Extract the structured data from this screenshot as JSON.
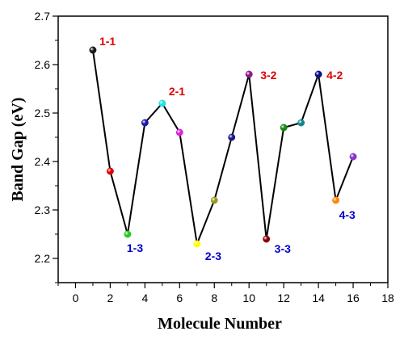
{
  "chart_data": {
    "type": "line",
    "xlabel": "Molecule Number",
    "ylabel": "Band Gap (eV)",
    "xlim": [
      -1,
      18
    ],
    "ylim": [
      2.15,
      2.7
    ],
    "xticks": [
      "0",
      "2",
      "4",
      "6",
      "8",
      "10",
      "12",
      "14",
      "16",
      "18"
    ],
    "yticks": [
      "2.2",
      "2.3",
      "2.4",
      "2.5",
      "2.6",
      "2.7"
    ],
    "grid": false,
    "series": [
      {
        "x": [
          1,
          2,
          3,
          4,
          5,
          6,
          7,
          8,
          9,
          10,
          11,
          12,
          13,
          14,
          15,
          16
        ],
        "y": [
          2.63,
          2.38,
          2.25,
          2.48,
          2.52,
          2.46,
          2.23,
          2.32,
          2.45,
          2.58,
          2.24,
          2.47,
          2.48,
          2.58,
          2.32,
          2.41
        ],
        "line_color": "#000000",
        "marker_colors": [
          "#1a1a1a",
          "#e00000",
          "#22cc22",
          "#1a1aaa",
          "#22e0e0",
          "#dd22dd",
          "#ffff00",
          "#999922",
          "#1a1a8a",
          "#8a1a8a",
          "#8a0000",
          "#118811",
          "#118888",
          "#0a0a8a",
          "#ff8800",
          "#8833cc"
        ]
      }
    ],
    "annotations": [
      {
        "text": "1-1",
        "x": 1,
        "y": 2.63,
        "color": "#e00000"
      },
      {
        "text": "1-3",
        "x": 3,
        "y": 2.25,
        "color": "#0000cc"
      },
      {
        "text": "2-1",
        "x": 5,
        "y": 2.52,
        "color": "#e00000"
      },
      {
        "text": "2-3",
        "x": 7,
        "y": 2.23,
        "color": "#0000cc"
      },
      {
        "text": "3-2",
        "x": 10,
        "y": 2.58,
        "color": "#e00000"
      },
      {
        "text": "3-3",
        "x": 11,
        "y": 2.24,
        "color": "#0000cc"
      },
      {
        "text": "4-2",
        "x": 14,
        "y": 2.58,
        "color": "#e00000"
      },
      {
        "text": "4-3",
        "x": 15,
        "y": 2.32,
        "color": "#0000cc"
      }
    ]
  }
}
